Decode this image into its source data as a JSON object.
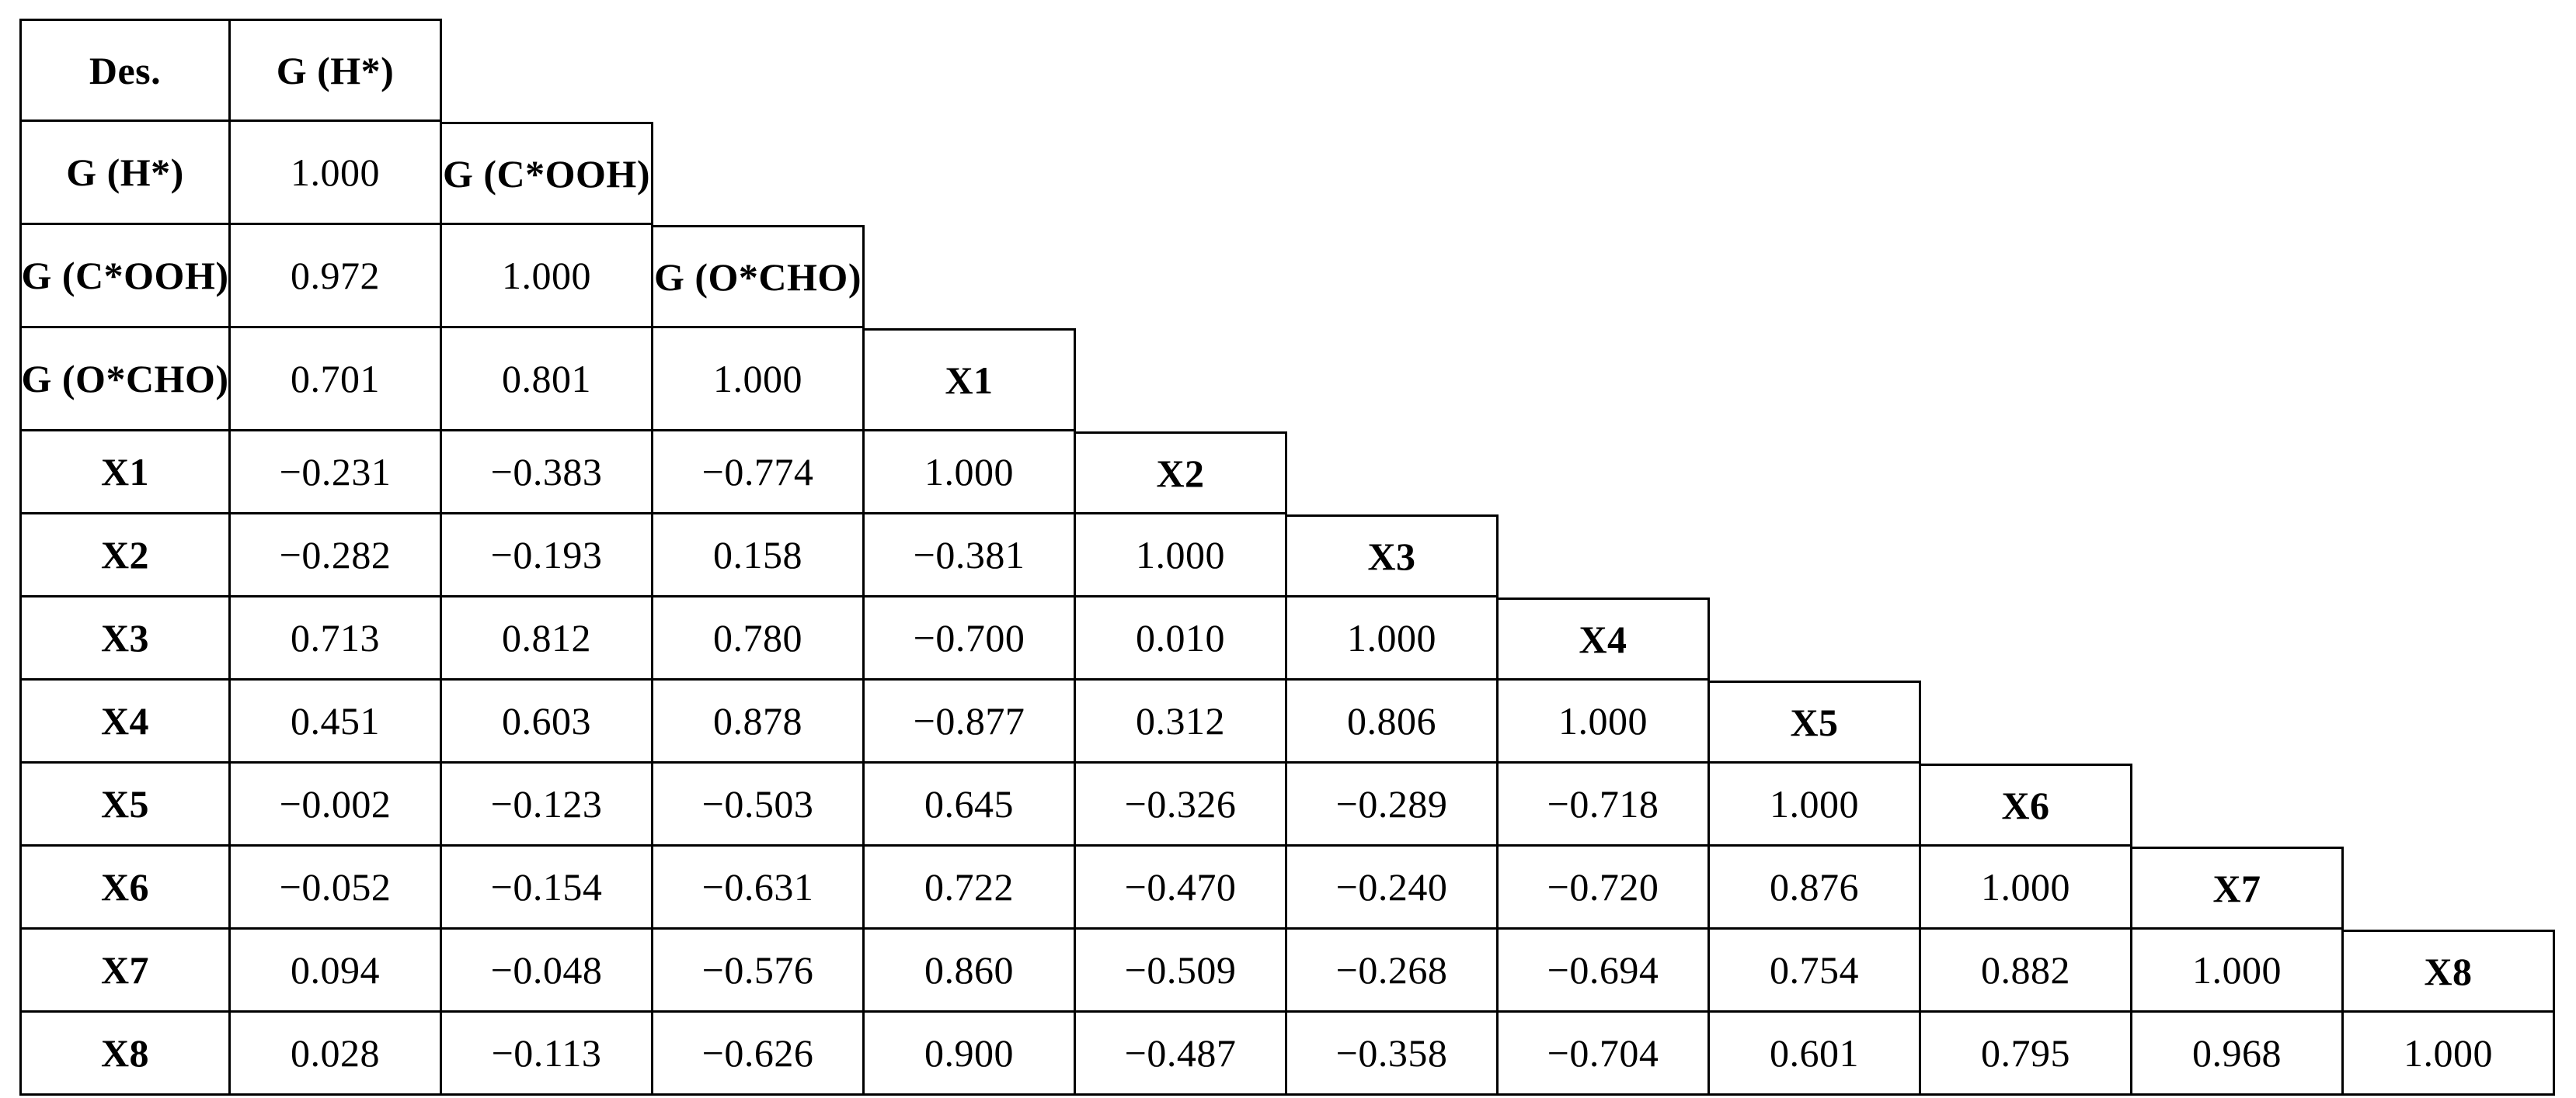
{
  "table": {
    "corner_label": "Des.",
    "rows": [
      {
        "kind": "tall",
        "cells": [
          {
            "t": "Des.",
            "h": true
          },
          {
            "t": "G (H*)",
            "h": true
          }
        ]
      },
      {
        "kind": "tall",
        "cells": [
          {
            "t": "G (H*)",
            "h": true
          },
          {
            "t": "1.000"
          },
          {
            "t": "G (C*OOH)",
            "h": true
          }
        ]
      },
      {
        "kind": "tall",
        "cells": [
          {
            "t": "G (C*OOH)",
            "h": true
          },
          {
            "t": "0.972"
          },
          {
            "t": "1.000"
          },
          {
            "t": "G (O*CHO)",
            "h": true
          }
        ]
      },
      {
        "kind": "tall",
        "cells": [
          {
            "t": "G (O*CHO)",
            "h": true
          },
          {
            "t": "0.701"
          },
          {
            "t": "0.801"
          },
          {
            "t": "1.000"
          },
          {
            "t": "X1",
            "h": true
          }
        ]
      },
      {
        "kind": "short",
        "cells": [
          {
            "t": "X1",
            "h": true
          },
          {
            "t": "−0.231"
          },
          {
            "t": "−0.383"
          },
          {
            "t": "−0.774"
          },
          {
            "t": "1.000"
          },
          {
            "t": "X2",
            "h": true
          }
        ]
      },
      {
        "kind": "short",
        "cells": [
          {
            "t": "X2",
            "h": true
          },
          {
            "t": "−0.282"
          },
          {
            "t": "−0.193"
          },
          {
            "t": "0.158"
          },
          {
            "t": "−0.381"
          },
          {
            "t": "1.000"
          },
          {
            "t": "X3",
            "h": true
          }
        ]
      },
      {
        "kind": "short",
        "cells": [
          {
            "t": "X3",
            "h": true
          },
          {
            "t": "0.713"
          },
          {
            "t": "0.812"
          },
          {
            "t": "0.780"
          },
          {
            "t": "−0.700"
          },
          {
            "t": "0.010"
          },
          {
            "t": "1.000"
          },
          {
            "t": "X4",
            "h": true
          }
        ]
      },
      {
        "kind": "short",
        "cells": [
          {
            "t": "X4",
            "h": true
          },
          {
            "t": "0.451"
          },
          {
            "t": "0.603"
          },
          {
            "t": "0.878"
          },
          {
            "t": "−0.877"
          },
          {
            "t": "0.312"
          },
          {
            "t": "0.806"
          },
          {
            "t": "1.000"
          },
          {
            "t": "X5",
            "h": true
          }
        ]
      },
      {
        "kind": "short",
        "cells": [
          {
            "t": "X5",
            "h": true
          },
          {
            "t": "−0.002"
          },
          {
            "t": "−0.123"
          },
          {
            "t": "−0.503"
          },
          {
            "t": "0.645"
          },
          {
            "t": "−0.326"
          },
          {
            "t": "−0.289"
          },
          {
            "t": "−0.718"
          },
          {
            "t": "1.000"
          },
          {
            "t": "X6",
            "h": true
          }
        ]
      },
      {
        "kind": "short",
        "cells": [
          {
            "t": "X6",
            "h": true
          },
          {
            "t": "−0.052"
          },
          {
            "t": "−0.154"
          },
          {
            "t": "−0.631"
          },
          {
            "t": "0.722"
          },
          {
            "t": "−0.470"
          },
          {
            "t": "−0.240"
          },
          {
            "t": "−0.720"
          },
          {
            "t": "0.876"
          },
          {
            "t": "1.000"
          },
          {
            "t": "X7",
            "h": true
          }
        ]
      },
      {
        "kind": "short",
        "cells": [
          {
            "t": "X7",
            "h": true
          },
          {
            "t": "0.094"
          },
          {
            "t": "−0.048"
          },
          {
            "t": "−0.576"
          },
          {
            "t": "0.860"
          },
          {
            "t": "−0.509"
          },
          {
            "t": "−0.268"
          },
          {
            "t": "−0.694"
          },
          {
            "t": "0.754"
          },
          {
            "t": "0.882"
          },
          {
            "t": "1.000"
          },
          {
            "t": "X8",
            "h": true
          }
        ]
      },
      {
        "kind": "short",
        "cells": [
          {
            "t": "X8",
            "h": true
          },
          {
            "t": "0.028"
          },
          {
            "t": "−0.113"
          },
          {
            "t": "−0.626"
          },
          {
            "t": "0.900"
          },
          {
            "t": "−0.487"
          },
          {
            "t": "−0.358"
          },
          {
            "t": "−0.704"
          },
          {
            "t": "0.601"
          },
          {
            "t": "0.795"
          },
          {
            "t": "0.968"
          },
          {
            "t": "1.000"
          }
        ]
      }
    ]
  },
  "chart_data": {
    "type": "table",
    "title": "",
    "corner_label": "Des.",
    "variables": [
      "G (H*)",
      "G (C*OOH)",
      "G (O*CHO)",
      "X1",
      "X2",
      "X3",
      "X4",
      "X5",
      "X6",
      "X7",
      "X8"
    ],
    "matrix_lower_triangular": [
      [
        1.0
      ],
      [
        0.972,
        1.0
      ],
      [
        0.701,
        0.801,
        1.0
      ],
      [
        -0.231,
        -0.383,
        -0.774,
        1.0
      ],
      [
        -0.282,
        -0.193,
        0.158,
        -0.381,
        1.0
      ],
      [
        0.713,
        0.812,
        0.78,
        -0.7,
        0.01,
        1.0
      ],
      [
        0.451,
        0.603,
        0.878,
        -0.877,
        0.312,
        0.806,
        1.0
      ],
      [
        -0.002,
        -0.123,
        -0.503,
        0.645,
        -0.326,
        -0.289,
        -0.718,
        1.0
      ],
      [
        -0.052,
        -0.154,
        -0.631,
        0.722,
        -0.47,
        -0.24,
        -0.72,
        0.876,
        1.0
      ],
      [
        0.094,
        -0.048,
        -0.576,
        0.86,
        -0.509,
        -0.268,
        -0.694,
        0.754,
        0.882,
        1.0
      ],
      [
        0.028,
        -0.113,
        -0.626,
        0.9,
        -0.487,
        -0.358,
        -0.704,
        0.601,
        0.795,
        0.968,
        1.0
      ]
    ],
    "layout_hints": {
      "shape": "staircase-lower-triangle",
      "diagonal_cells_contain_next_variable_label": true,
      "border_color": "#000000",
      "text_color": "#000000",
      "background": "#ffffff"
    }
  }
}
